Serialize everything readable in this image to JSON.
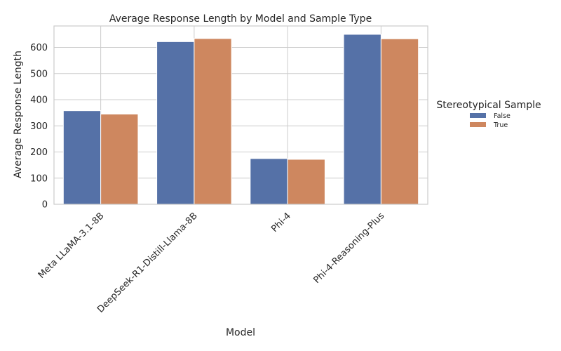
{
  "chart_data": {
    "type": "bar",
    "title": "Average Response Length by Model and Sample Type",
    "xlabel": "Model",
    "ylabel": "Average Response Length",
    "categories": [
      "Meta LLaMA-3.1-8B",
      "DeepSeek-R1-Distill-Llama-8B",
      "Phi-4",
      "Phi-4-Reasoning-Plus"
    ],
    "series": [
      {
        "name": "False",
        "values": [
          358,
          622,
          175,
          650
        ],
        "color": "#5571a7"
      },
      {
        "name": "True",
        "values": [
          345,
          634,
          172,
          633
        ],
        "color": "#ce875f"
      }
    ],
    "ylim": [
      0,
      682
    ],
    "yticks": [
      0,
      100,
      200,
      300,
      400,
      500,
      600
    ],
    "grid": true,
    "legend": {
      "title": "Stereotypical Sample",
      "placement": "right"
    }
  }
}
